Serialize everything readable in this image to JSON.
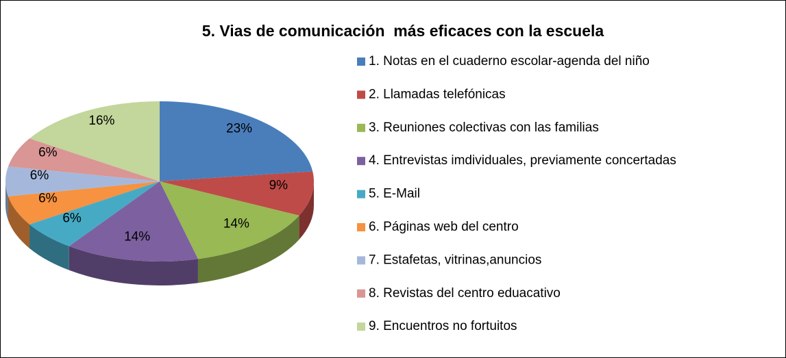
{
  "chart_data": {
    "type": "pie",
    "title": "5. Vias de comunicación  más eficaces con la escuela",
    "categories": [
      "1. Notas en el cuaderno escolar-agenda del niño",
      "2. Llamadas telefónicas",
      "3. Reuniones colectivas con las familias",
      "4. Entrevistas imdividuales, previamente concertadas",
      "5. E-Mail",
      "6. Páginas web del centro",
      "7. Estafetas, vitrinas,anuncios",
      "8. Revistas del centro eduacativo",
      "9. Encuentros no fortuitos"
    ],
    "values": [
      23,
      9,
      14,
      14,
      6,
      6,
      6,
      6,
      16
    ],
    "value_labels": [
      "23%",
      "9%",
      "14%",
      "14%",
      "6%",
      "6%",
      "6%",
      "6%",
      "16%"
    ],
    "colors": [
      "#4a7ebb",
      "#be4b48",
      "#98b954",
      "#7d60a0",
      "#46aac5",
      "#f69240",
      "#a5b8dc",
      "#d99694",
      "#c3d69b"
    ],
    "legend": "right"
  }
}
